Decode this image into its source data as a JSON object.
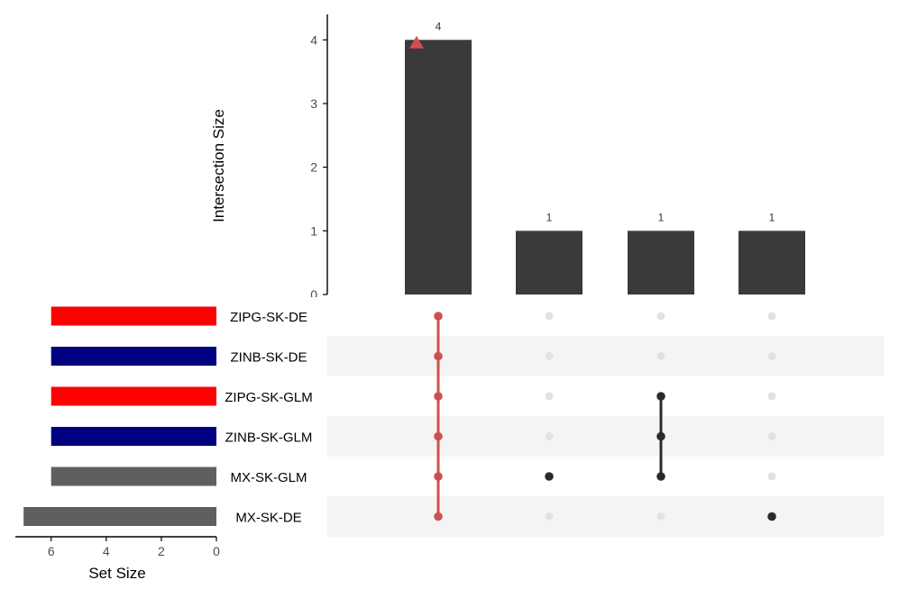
{
  "chart_data": {
    "type": "upset",
    "intersections": {
      "ylabel": "Intersection Size",
      "yticks": [
        0,
        1,
        2,
        3,
        4
      ],
      "ylim": [
        0,
        4.4
      ],
      "values": [
        4,
        1,
        1,
        1
      ],
      "value_labels": [
        "4",
        "1",
        "1",
        "1"
      ],
      "members": [
        [
          "ZIPG-SK-DE",
          "ZINB-SK-DE",
          "ZIPG-SK-GLM",
          "ZINB-SK-GLM",
          "MX-SK-GLM",
          "MX-SK-DE"
        ],
        [
          "MX-SK-GLM"
        ],
        [
          "ZIPG-SK-GLM",
          "ZINB-SK-GLM",
          "MX-SK-GLM"
        ],
        [
          "MX-SK-DE"
        ]
      ],
      "highlight_index": 0,
      "highlight_marker": "triangle",
      "highlight_marker_value": 3.95
    },
    "sets": {
      "xlabel": "Set Size",
      "xticks": [
        6,
        4,
        2,
        0
      ],
      "xlim": [
        7.3,
        0
      ],
      "names": [
        "ZIPG-SK-DE",
        "ZINB-SK-DE",
        "ZIPG-SK-GLM",
        "ZINB-SK-GLM",
        "MX-SK-GLM",
        "MX-SK-DE"
      ],
      "sizes": [
        6,
        6,
        6,
        6,
        6,
        7
      ]
    },
    "colors": {
      "ZIPG-SK-DE": "#ff0000",
      "ZINB-SK-DE": "#000080",
      "ZIPG-SK-GLM": "#ff0000",
      "ZINB-SK-GLM": "#000080",
      "MX-SK-GLM": "#5f5f5f",
      "MX-SK-DE": "#5f5f5f",
      "bar": "#3a3a3a",
      "highlight": "#cd5050",
      "dot_active": "#2b2b2b",
      "dot_inactive": "#e2e2e2",
      "stripe": "#f4f4f4"
    }
  }
}
